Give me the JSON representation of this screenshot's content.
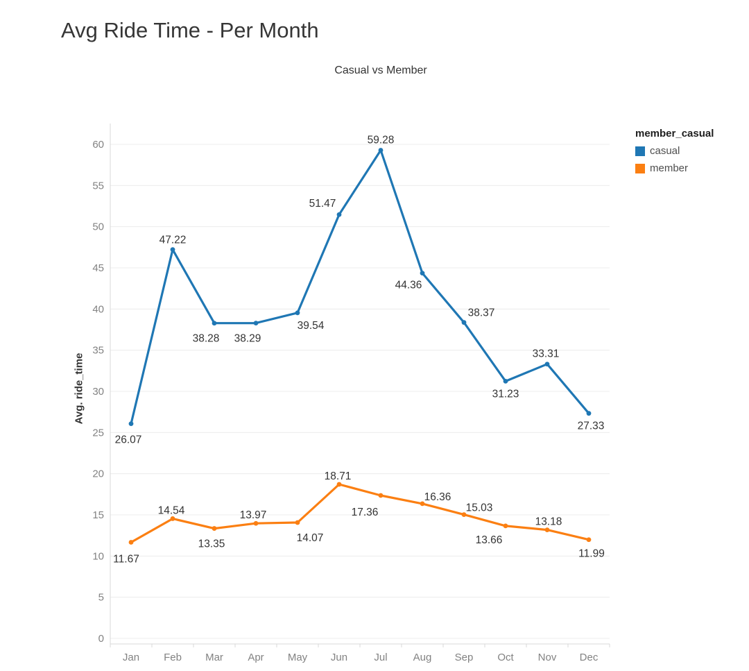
{
  "page": {
    "title": "Avg Ride Time - Per Month",
    "subtitle": "Casual vs Member"
  },
  "legend": {
    "title": "member_casual",
    "items": [
      {
        "label": "casual",
        "color": "#1F77B4"
      },
      {
        "label": "member",
        "color": "#FB7F12"
      }
    ]
  },
  "chart_data": {
    "type": "line",
    "title": "Avg Ride Time - Per Month",
    "subtitle": "Casual vs Member",
    "categories": [
      "Jan",
      "Feb",
      "Mar",
      "Apr",
      "May",
      "Jun",
      "Jul",
      "Aug",
      "Sep",
      "Oct",
      "Nov",
      "Dec"
    ],
    "xlabel": "",
    "ylabel": "Avg. ride_time",
    "ylim": [
      0,
      60
    ],
    "yticks": [
      0,
      5,
      10,
      15,
      20,
      25,
      30,
      35,
      40,
      45,
      50,
      55,
      60
    ],
    "grid": true,
    "legend_position": "right",
    "legend_title": "member_casual",
    "series": [
      {
        "name": "casual",
        "color": "#1F77B4",
        "values": [
          26.07,
          47.22,
          38.28,
          38.29,
          39.54,
          51.47,
          59.28,
          44.36,
          38.37,
          31.23,
          33.31,
          27.33
        ],
        "labels": [
          "26.07",
          "47.22",
          "38.28",
          "38.29",
          "39.54",
          "51.47",
          "59.28",
          "44.36",
          "38.37",
          "31.23",
          "33.31",
          "27.33"
        ],
        "label_offsets": [
          [
            -4,
            23
          ],
          [
            0,
            -14
          ],
          [
            -12,
            22
          ],
          [
            -12,
            22
          ],
          [
            19,
            18
          ],
          [
            -24,
            -16
          ],
          [
            0,
            -15
          ],
          [
            -20,
            17
          ],
          [
            25,
            -14
          ],
          [
            0,
            18
          ],
          [
            -2,
            -15
          ],
          [
            3,
            18
          ]
        ]
      },
      {
        "name": "member",
        "color": "#FB7F12",
        "values": [
          11.67,
          14.54,
          13.35,
          13.97,
          14.07,
          18.71,
          17.36,
          16.36,
          15.03,
          13.66,
          13.18,
          11.99
        ],
        "labels": [
          "11.67",
          "14.54",
          "13.35",
          "13.97",
          "14.07",
          "18.71",
          "17.36",
          "16.36",
          "15.03",
          "13.66",
          "13.18",
          "11.99"
        ],
        "label_offsets": [
          [
            -7,
            24
          ],
          [
            -2,
            -12
          ],
          [
            -4,
            22
          ],
          [
            -4,
            -12
          ],
          [
            18,
            22
          ],
          [
            -2,
            -12
          ],
          [
            -23,
            24
          ],
          [
            22,
            -10
          ],
          [
            22,
            -10
          ],
          [
            -24,
            20
          ],
          [
            2,
            -12
          ],
          [
            4,
            20
          ]
        ]
      }
    ]
  }
}
